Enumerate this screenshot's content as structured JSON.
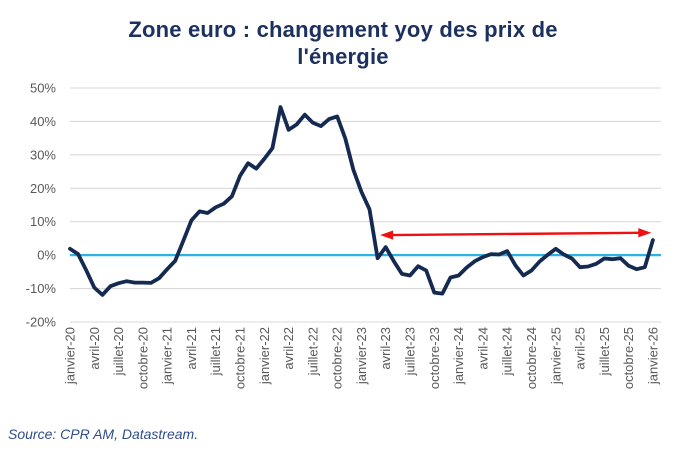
{
  "title": "Zone euro : changement yoy des prix de l'énergie",
  "title_lines": [
    "Zone euro : changement yoy des prix de",
    "l'énergie"
  ],
  "source": "Source: CPR AM, Datastream.",
  "colors": {
    "title": "#1c3160",
    "series_line": "#152a51",
    "zero_line": "#2bb3e6",
    "arrow": "#ee1111",
    "gridline": "#d9d9d9",
    "tick_text": "#595959",
    "source_text": "#2f4d8c",
    "background": "#ffffff"
  },
  "chart_data": {
    "type": "line",
    "title": "Zone euro : changement yoy des prix de l'énergie",
    "x_frequency": "monthly",
    "x_first": "janvier-20",
    "x_last": "janvier-26",
    "x_tick_labels": [
      "janvier-20",
      "avril-20",
      "juillet-20",
      "octobre-20",
      "janvier-21",
      "avril-21",
      "juillet-21",
      "octobre-21",
      "janvier-22",
      "avril-22",
      "juillet-22",
      "octobre-22",
      "janvier-23",
      "avril-23",
      "juillet-23",
      "octobre-23",
      "janvier-24",
      "avril-24",
      "juillet-24",
      "octobre-24",
      "janvier-25",
      "avril-25",
      "juillet-25",
      "octobre-25",
      "janvier-26"
    ],
    "points_per_tick": 3,
    "x_slot_count": 74,
    "ylim": [
      -20,
      50
    ],
    "y_ticks": [
      50,
      40,
      30,
      20,
      10,
      0,
      -10,
      -20
    ],
    "y_tick_labels": [
      "50%",
      "40%",
      "30%",
      "20%",
      "10%",
      "0%",
      "-10%",
      "-20%"
    ],
    "grid": "horizontal",
    "legend": "none",
    "zero_line_value": 0,
    "series": [
      {
        "name": "Prix de l'énergie, variation yoy (%)",
        "values": [
          1.9,
          0.3,
          -4.5,
          -9.7,
          -11.9,
          -9.3,
          -8.4,
          -7.8,
          -8.2,
          -8.2,
          -8.3,
          -6.9,
          -4.2,
          -1.7,
          4.3,
          10.4,
          13.1,
          12.6,
          14.3,
          15.4,
          17.6,
          23.7,
          27.5,
          25.9,
          28.8,
          32.0,
          44.3,
          37.5,
          39.1,
          42.0,
          39.6,
          38.6,
          40.7,
          41.5,
          34.9,
          25.5,
          18.9,
          13.7,
          -0.9,
          2.4,
          -1.8,
          -5.6,
          -6.1,
          -3.3,
          -4.6,
          -11.2,
          -11.5,
          -6.7,
          -6.1,
          -3.7,
          -1.8,
          -0.6,
          0.3,
          0.2,
          1.2,
          -3.0,
          -6.1,
          -4.6,
          -1.9,
          0.1,
          1.9,
          0.2,
          -1.0,
          -3.6,
          -3.4,
          -2.6,
          -1.0,
          -1.2,
          -0.9,
          -3.2,
          -4.2,
          -3.6,
          4.5
        ]
      }
    ],
    "annotation_arrow": {
      "type": "double-headed-horizontal",
      "start_month": "avril-23",
      "end_month": "janvier-26",
      "start_slot": 38.3,
      "end_slot": 71.8,
      "y_pct_start": 6.0,
      "y_pct_end": 6.7
    }
  }
}
